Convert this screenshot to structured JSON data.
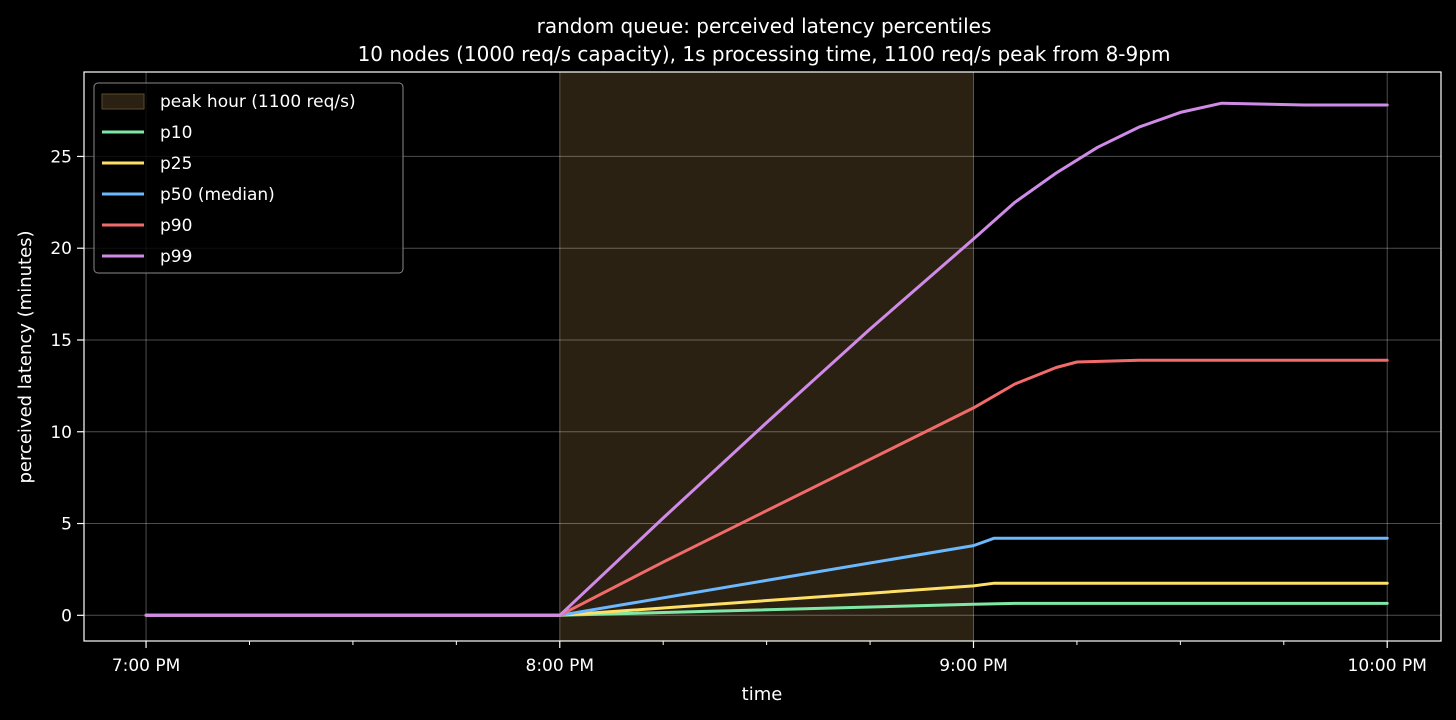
{
  "colors": {
    "background": "#000000",
    "peak_fill": "#2a2112",
    "p10": "#7ee8a6",
    "p25": "#ffe066",
    "p50": "#6cb8ff",
    "p90": "#f26b6b",
    "p99": "#d08be8"
  },
  "chart_data": {
    "type": "line",
    "title": "random queue: perceived latency percentiles",
    "subtitle": "10 nodes (1000 req/s capacity), 1s processing time, 1100 req/s peak from 8-9pm",
    "xlabel": "time",
    "ylabel": "perceived latency (minutes)",
    "x_unit": "hours after 7:00 PM",
    "xlim": [
      -0.15,
      3.13
    ],
    "ylim": [
      -1.4,
      29.6
    ],
    "x_ticks": [
      0,
      1,
      2,
      3
    ],
    "x_tick_labels": [
      "7:00 PM",
      "8:00 PM",
      "9:00 PM",
      "10:00 PM"
    ],
    "y_ticks": [
      0,
      5,
      10,
      15,
      20,
      25
    ],
    "y_tick_labels": [
      "0",
      "5",
      "10",
      "15",
      "20",
      "25"
    ],
    "grid": true,
    "legend_position": "top-left",
    "shaded_region": {
      "label": "peak hour (1100 req/s)",
      "x_start": 1,
      "x_end": 2
    },
    "series": [
      {
        "name": "p10",
        "color": "#7ee8a6",
        "points": [
          [
            0,
            0
          ],
          [
            1,
            0
          ],
          [
            2,
            0.6
          ],
          [
            2.1,
            0.65
          ],
          [
            2.5,
            0.65
          ],
          [
            3,
            0.65
          ]
        ]
      },
      {
        "name": "p25",
        "color": "#ffe066",
        "points": [
          [
            0,
            0
          ],
          [
            1,
            0
          ],
          [
            2,
            1.6
          ],
          [
            2.05,
            1.75
          ],
          [
            2.5,
            1.75
          ],
          [
            3,
            1.75
          ]
        ]
      },
      {
        "name": "p50 (median)",
        "color": "#6cb8ff",
        "points": [
          [
            0,
            0
          ],
          [
            1,
            0
          ],
          [
            1.5,
            1.9
          ],
          [
            2,
            3.8
          ],
          [
            2.05,
            4.2
          ],
          [
            2.5,
            4.2
          ],
          [
            3,
            4.2
          ]
        ]
      },
      {
        "name": "p90",
        "color": "#f26b6b",
        "points": [
          [
            0,
            0
          ],
          [
            1,
            0
          ],
          [
            1.25,
            2.9
          ],
          [
            1.5,
            5.7
          ],
          [
            1.75,
            8.5
          ],
          [
            2,
            11.3
          ],
          [
            2.1,
            12.6
          ],
          [
            2.2,
            13.5
          ],
          [
            2.25,
            13.8
          ],
          [
            2.4,
            13.9
          ],
          [
            2.6,
            13.9
          ],
          [
            2.8,
            13.9
          ],
          [
            3,
            13.9
          ]
        ]
      },
      {
        "name": "p99",
        "color": "#d08be8",
        "points": [
          [
            0,
            0
          ],
          [
            1,
            0
          ],
          [
            1.25,
            5.3
          ],
          [
            1.5,
            10.5
          ],
          [
            1.75,
            15.6
          ],
          [
            2,
            20.5
          ],
          [
            2.1,
            22.5
          ],
          [
            2.2,
            24.1
          ],
          [
            2.3,
            25.5
          ],
          [
            2.4,
            26.6
          ],
          [
            2.5,
            27.4
          ],
          [
            2.6,
            27.9
          ],
          [
            2.8,
            27.8
          ],
          [
            3,
            27.8
          ]
        ]
      }
    ]
  }
}
